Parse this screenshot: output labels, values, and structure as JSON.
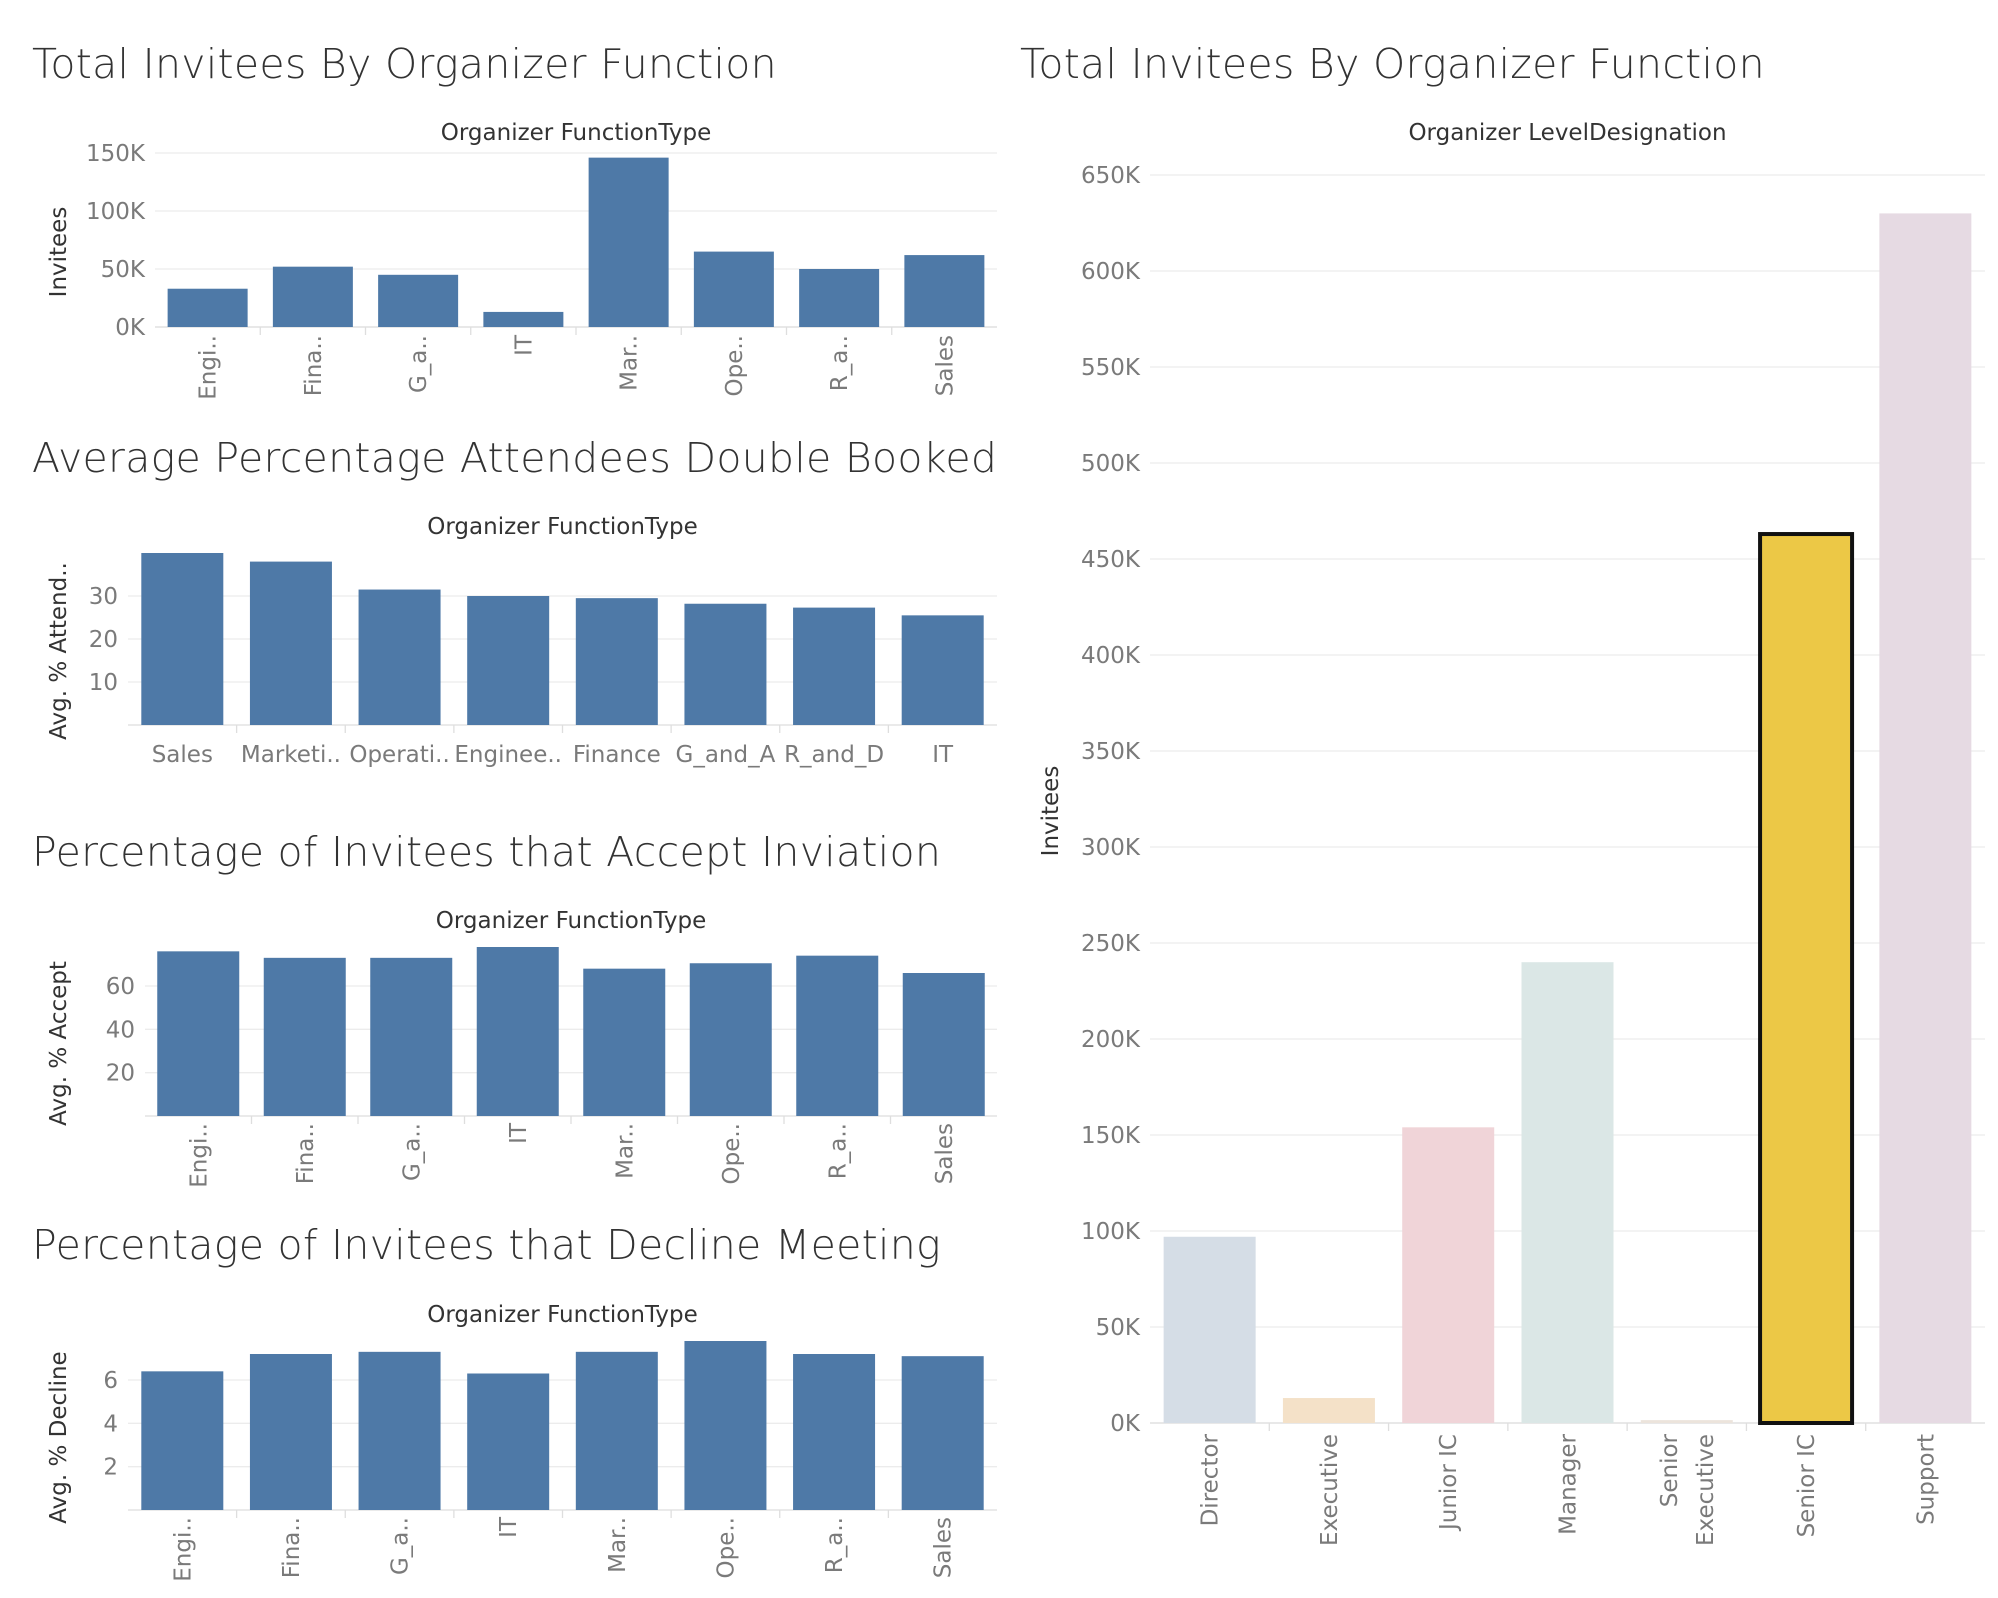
{
  "charts": [
    {
      "title": "Total Invitees By Organizer Function",
      "chart_data": {
        "type": "bar",
        "header": "Organizer FunctionType",
        "ylabel": "Invitees",
        "categories": [
          "Engi..",
          "Fina..",
          "G_a..",
          "IT",
          "Mar..",
          "Ope..",
          "R_a..",
          "Sales"
        ],
        "values": [
          33000,
          52000,
          45000,
          13000,
          146000,
          65000,
          50000,
          62000
        ],
        "yticks": [
          {
            "v": 0,
            "label": "0K"
          },
          {
            "v": 50000,
            "label": "50K"
          },
          {
            "v": 100000,
            "label": "100K"
          },
          {
            "v": 150000,
            "label": "150K"
          }
        ],
        "ylim": [
          0,
          150000
        ],
        "color": "#4e79a7",
        "rotated_labels": true,
        "grid": true
      }
    },
    {
      "title": "Average Percentage Attendees Double Booked",
      "chart_data": {
        "type": "bar",
        "header": "Organizer FunctionType",
        "ylabel": "Avg. % Attend..",
        "categories": [
          "Sales",
          "Marketi..",
          "Operati..",
          "Enginee..",
          "Finance",
          "G_and_A",
          "R_and_D",
          "IT"
        ],
        "values": [
          40,
          38,
          31.5,
          30,
          29.5,
          28.2,
          27.3,
          25.5
        ],
        "yticks": [
          {
            "v": 10,
            "label": "10"
          },
          {
            "v": 20,
            "label": "20"
          },
          {
            "v": 30,
            "label": "30"
          }
        ],
        "ylim": [
          0,
          40
        ],
        "color": "#4e79a7",
        "rotated_labels": false,
        "grid": true
      }
    },
    {
      "title": "Percentage of Invitees that Accept Inviation",
      "chart_data": {
        "type": "bar",
        "header": "Organizer FunctionType",
        "ylabel": "Avg. % Accept",
        "categories": [
          "Engi..",
          "Fina..",
          "G_a..",
          "IT",
          "Mar..",
          "Ope..",
          "R_a..",
          "Sales"
        ],
        "values": [
          76,
          73,
          73,
          78,
          68,
          70.5,
          74,
          66
        ],
        "yticks": [
          {
            "v": 20,
            "label": "20"
          },
          {
            "v": 40,
            "label": "40"
          },
          {
            "v": 60,
            "label": "60"
          }
        ],
        "ylim": [
          0,
          78
        ],
        "color": "#4e79a7",
        "rotated_labels": true,
        "grid": true
      }
    },
    {
      "title": "Percentage of Invitees that Decline Meeting",
      "chart_data": {
        "type": "bar",
        "header": "Organizer FunctionType",
        "ylabel": "Avg. % Decline",
        "categories": [
          "Engi..",
          "Fina..",
          "G_a..",
          "IT",
          "Mar..",
          "Ope..",
          "R_a..",
          "Sales"
        ],
        "values": [
          6.4,
          7.2,
          7.3,
          6.3,
          7.3,
          7.8,
          7.2,
          7.1
        ],
        "yticks": [
          {
            "v": 2,
            "label": "2"
          },
          {
            "v": 4,
            "label": "4"
          },
          {
            "v": 6,
            "label": "6"
          }
        ],
        "ylim": [
          0,
          7.8
        ],
        "color": "#4e79a7",
        "rotated_labels": true,
        "grid": true
      }
    },
    {
      "title": "Total Invitees By Organizer Function",
      "chart_data": {
        "type": "bar",
        "header": "Organizer LevelDesignation",
        "ylabel": "Invitees",
        "categories": [
          "Director",
          "Executive",
          "Junior IC",
          "Manager",
          "Senior\nExecutive",
          "Senior IC",
          "Support"
        ],
        "values": [
          97000,
          13000,
          154000,
          240000,
          1500,
          463000,
          630000
        ],
        "colors": [
          "#d5dde6",
          "#f4e1c8",
          "#f0d4d8",
          "#dbe7e6",
          "#ece4dc",
          "#ecc846",
          "#e6dae3"
        ],
        "highlighted": "Senior IC",
        "yticks": [
          {
            "v": 0,
            "label": "0K"
          },
          {
            "v": 50000,
            "label": "50K"
          },
          {
            "v": 100000,
            "label": "100K"
          },
          {
            "v": 150000,
            "label": "150K"
          },
          {
            "v": 200000,
            "label": "200K"
          },
          {
            "v": 250000,
            "label": "250K"
          },
          {
            "v": 300000,
            "label": "300K"
          },
          {
            "v": 350000,
            "label": "350K"
          },
          {
            "v": 400000,
            "label": "400K"
          },
          {
            "v": 450000,
            "label": "450K"
          },
          {
            "v": 500000,
            "label": "500K"
          },
          {
            "v": 550000,
            "label": "550K"
          },
          {
            "v": 600000,
            "label": "600K"
          },
          {
            "v": 650000,
            "label": "650K"
          }
        ],
        "ylim": [
          0,
          650000
        ],
        "rotated_labels": true,
        "grid": true
      }
    }
  ]
}
